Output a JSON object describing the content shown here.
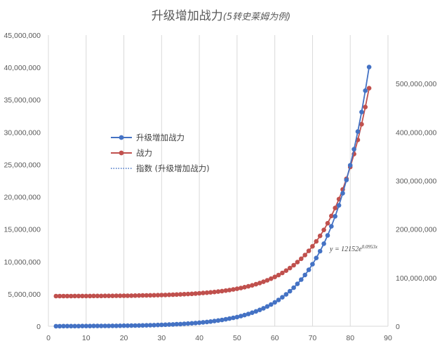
{
  "chart_data": {
    "type": "line",
    "title": "升级增加战力",
    "subtitle": "(5转史莱姆为例)",
    "xlim": [
      0,
      90
    ],
    "x_ticks": [
      0,
      10,
      20,
      30,
      40,
      50,
      60,
      70,
      80,
      90
    ],
    "y_left_lim": [
      0,
      45000000
    ],
    "y_left_ticks": [
      "0",
      "5,000,000",
      "10,000,000",
      "15,000,000",
      "20,000,000",
      "25,000,000",
      "30,000,000",
      "35,000,000",
      "40,000,000",
      "45,000,000"
    ],
    "y_right_lim": [
      0,
      600000000
    ],
    "y_right_ticks": [
      "0",
      "100,000,000",
      "200,000,000",
      "300,000,000",
      "400,000,000",
      "500,000,000"
    ],
    "grid": "vertical",
    "legend_position": "left-middle",
    "series": [
      {
        "name": "升级增加战力",
        "axis": "left",
        "color": "#4472c4",
        "model": {
          "a": 12152,
          "b": 0.0953
        },
        "x": [
          2,
          3,
          4,
          5,
          6,
          7,
          8,
          9,
          10,
          11,
          12,
          13,
          14,
          15,
          16,
          17,
          18,
          19,
          20,
          21,
          22,
          23,
          24,
          25,
          26,
          27,
          28,
          29,
          30,
          31,
          32,
          33,
          34,
          35,
          36,
          37,
          38,
          39,
          40,
          41,
          42,
          43,
          44,
          45,
          46,
          47,
          48,
          49,
          50,
          51,
          52,
          53,
          54,
          55,
          56,
          57,
          58,
          59,
          60,
          61,
          62,
          63,
          64,
          65,
          66,
          67,
          68,
          69,
          70,
          71,
          72,
          73,
          74,
          75,
          76,
          77,
          78,
          79,
          80,
          81,
          82,
          83,
          84,
          85
        ]
      },
      {
        "name": "战力",
        "axis": "right",
        "color": "#c0504d",
        "model": {
          "base": 62000000,
          "a": 12152,
          "b": 0.0953,
          "k": 10.7
        },
        "x": [
          2,
          3,
          4,
          5,
          6,
          7,
          8,
          9,
          10,
          11,
          12,
          13,
          14,
          15,
          16,
          17,
          18,
          19,
          20,
          21,
          22,
          23,
          24,
          25,
          26,
          27,
          28,
          29,
          30,
          31,
          32,
          33,
          34,
          35,
          36,
          37,
          38,
          39,
          40,
          41,
          42,
          43,
          44,
          45,
          46,
          47,
          48,
          49,
          50,
          51,
          52,
          53,
          54,
          55,
          56,
          57,
          58,
          59,
          60,
          61,
          62,
          63,
          64,
          65,
          66,
          67,
          68,
          69,
          70,
          71,
          72,
          73,
          74,
          75,
          76,
          77,
          78,
          79,
          80,
          81,
          82,
          83,
          84,
          85
        ]
      },
      {
        "name": "指数 (升级增加战力)",
        "type": "trendline",
        "style": "dotted",
        "color": "#4472c4",
        "axis": "left",
        "equation": "y = 12152e",
        "equation_exp": "0.0953x"
      }
    ]
  }
}
